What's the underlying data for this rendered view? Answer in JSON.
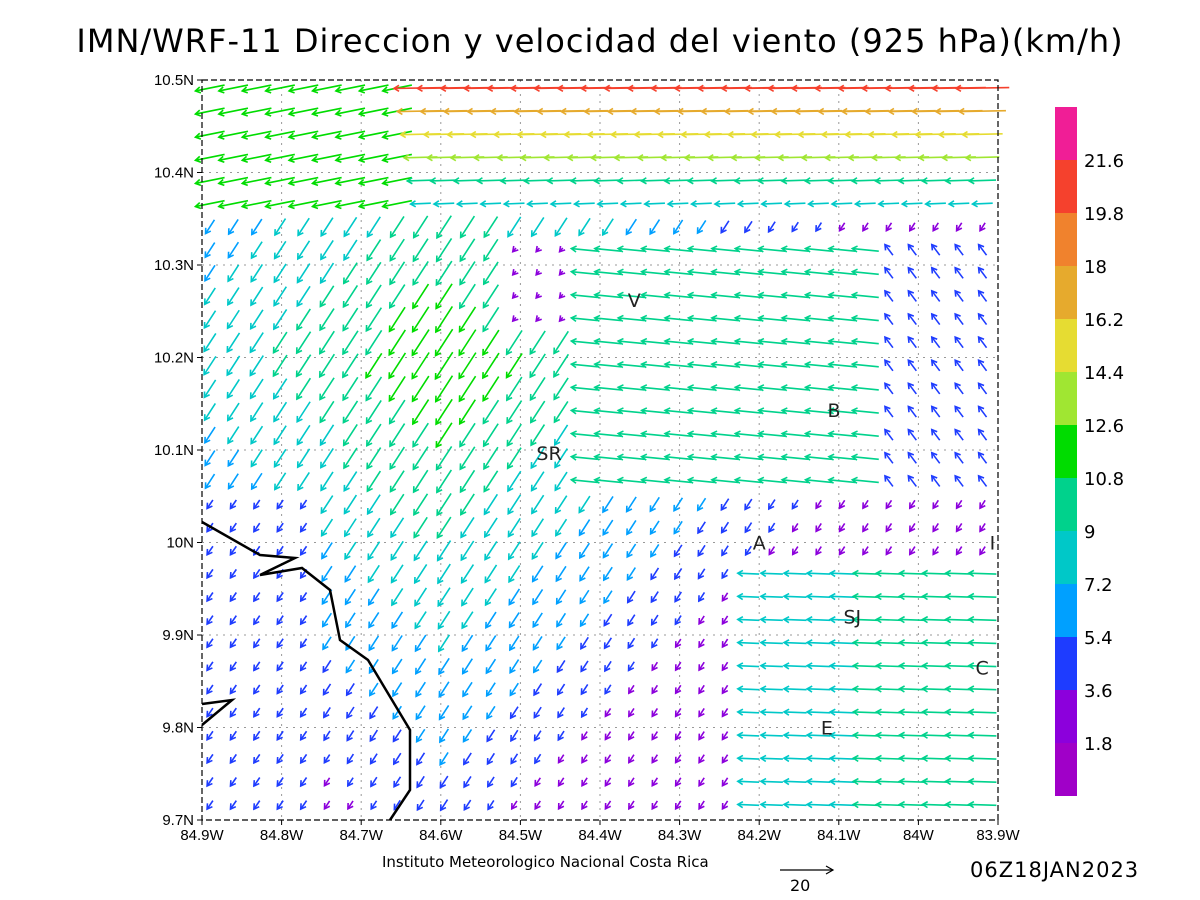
{
  "title": "IMN/WRF-11 Direccion y velocidad del viento (925 hPa)(km/h)",
  "footer": {
    "credit": "Instituto Meteorologico Nacional Costa Rica",
    "datetime": "06Z18JAN2023",
    "reference_vector_label": "20"
  },
  "map": {
    "lon_range": [
      -84.9,
      -83.9
    ],
    "lat_range": [
      9.7,
      10.5
    ],
    "x_ticks": [
      "84.9W",
      "84.8W",
      "84.7W",
      "84.6W",
      "84.5W",
      "84.4W",
      "84.3W",
      "84.2W",
      "84.1W",
      "84W",
      "83.9W"
    ],
    "y_ticks": [
      "9.7N",
      "9.8N",
      "9.9N",
      "10N",
      "10.1N",
      "10.2N",
      "10.3N",
      "10.4N",
      "10.5N"
    ],
    "grid": "dotted",
    "places": [
      {
        "label": "V",
        "lon": -84.357,
        "lat": 10.262
      },
      {
        "label": "B",
        "lon": -84.106,
        "lat": 10.143
      },
      {
        "label": "SR",
        "lon": -84.464,
        "lat": 10.097
      },
      {
        "label": "A",
        "lon": -84.2,
        "lat": 10.0
      },
      {
        "label": "I",
        "lon": -83.907,
        "lat": 10.0
      },
      {
        "label": "SJ",
        "lon": -84.083,
        "lat": 9.92
      },
      {
        "label": "C",
        "lon": -83.92,
        "lat": 9.865
      },
      {
        "label": "E",
        "lon": -84.115,
        "lat": 9.8
      }
    ]
  },
  "colorbar": {
    "labels": [
      "21.6",
      "19.8",
      "18",
      "16.2",
      "14.4",
      "12.6",
      "10.8",
      "9",
      "7.2",
      "5.4",
      "3.6",
      "1.8"
    ],
    "colors": [
      "#f01e96",
      "#f5412d",
      "#f0822d",
      "#e6aa2d",
      "#e6dc32",
      "#a0e632",
      "#00dc00",
      "#00d28c",
      "#00c8c8",
      "#00a0ff",
      "#1e3cff",
      "#8c00dc",
      "#a000c8"
    ]
  }
}
